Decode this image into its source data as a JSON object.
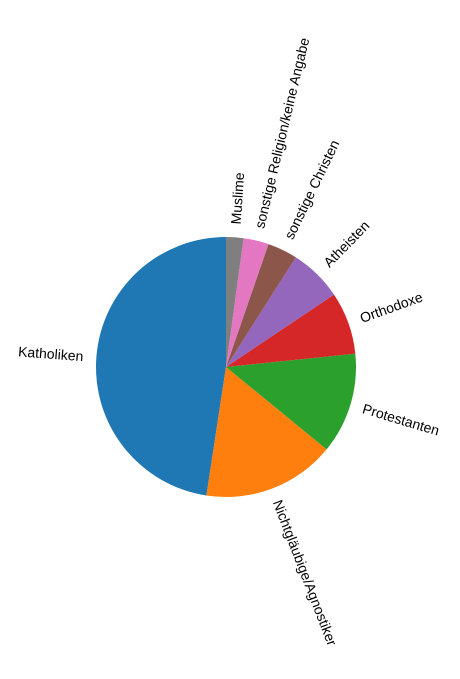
{
  "chart_data": {
    "type": "pie",
    "title": "",
    "start_angle_deg": 90,
    "direction": "counterclockwise",
    "labels_rotated": true,
    "slices": [
      {
        "label": "Katholiken",
        "value": 48.5,
        "color": "#1f77b4"
      },
      {
        "label": "Nichtgläubige/Agnostiker",
        "value": 16.8,
        "color": "#ff7f0e"
      },
      {
        "label": "Protestanten",
        "value": 12.8,
        "color": "#2ca02c"
      },
      {
        "label": "Orthodoxe",
        "value": 7.9,
        "color": "#d62728"
      },
      {
        "label": "Atheisten",
        "value": 6.7,
        "color": "#9467bd"
      },
      {
        "label": "sonstige Christen",
        "value": 3.8,
        "color": "#8c564b"
      },
      {
        "label": "sonstige Religion/keine Angabe",
        "value": 3.2,
        "color": "#e377c2"
      },
      {
        "label": "Muslime",
        "value": 2.2,
        "color": "#7f7f7f"
      }
    ]
  }
}
